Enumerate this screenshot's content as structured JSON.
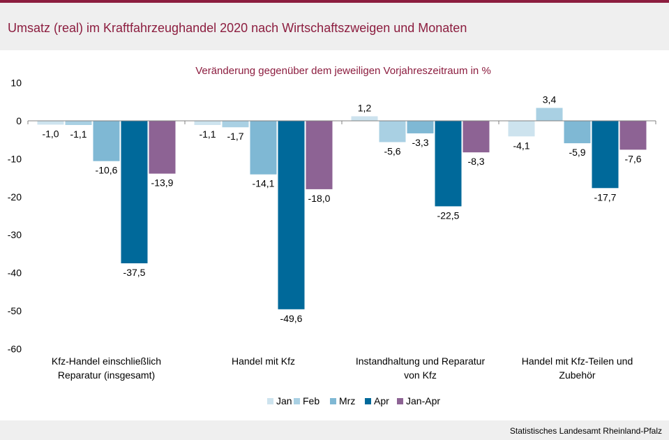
{
  "page": {
    "title": "Umsatz (real) im Kraftfahrzeughandel 2020 nach Wirtschaftszweigen und Monaten",
    "source": "Statistisches Landesamt Rheinland-Pfalz"
  },
  "colors": {
    "brand": "#8c1d3f",
    "Jan": "#cde3ee",
    "Feb": "#a9d0e3",
    "Mrz": "#7fb8d4",
    "Apr": "#00699a",
    "Jan-Apr": "#8d6394"
  },
  "chart_data": {
    "type": "bar",
    "subtitle": "Veränderung  gegenüber  dem jeweiligen Vorjahreszeitraum  in %",
    "categories": [
      [
        "Kfz-Handel einschließlich",
        "Reparatur (insgesamt)"
      ],
      [
        "Handel mit Kfz"
      ],
      [
        "Instandhaltung und Reparatur",
        "von Kfz"
      ],
      [
        "Handel mit Kfz-Teilen und",
        "Zubehör"
      ]
    ],
    "series": [
      {
        "name": "Jan",
        "values": [
          -1.0,
          -1.1,
          1.2,
          -4.1
        ],
        "labels": [
          "-1,0",
          "-1,1",
          "1,2",
          "-4,1"
        ]
      },
      {
        "name": "Feb",
        "values": [
          -1.1,
          -1.7,
          -5.6,
          3.4
        ],
        "labels": [
          "-1,1",
          "-1,7",
          "-5,6",
          "3,4"
        ]
      },
      {
        "name": "Mrz",
        "values": [
          -10.6,
          -14.1,
          -3.3,
          -5.9
        ],
        "labels": [
          "-10,6",
          "-14,1",
          "-3,3",
          "-5,9"
        ]
      },
      {
        "name": "Apr",
        "values": [
          -37.5,
          -49.6,
          -22.5,
          -17.7
        ],
        "labels": [
          "-37,5",
          "-49,6",
          "-22,5",
          "-17,7"
        ]
      },
      {
        "name": "Jan-Apr",
        "values": [
          -13.9,
          -18.0,
          -8.3,
          -7.6
        ],
        "labels": [
          "-13,9",
          "-18,0",
          "-8,3",
          "-7,6"
        ]
      }
    ],
    "ylim": [
      -60,
      10
    ],
    "yticks": [
      10,
      0,
      -10,
      -20,
      -30,
      -40,
      -50,
      -60
    ],
    "grid": false,
    "legend": "bottom"
  }
}
